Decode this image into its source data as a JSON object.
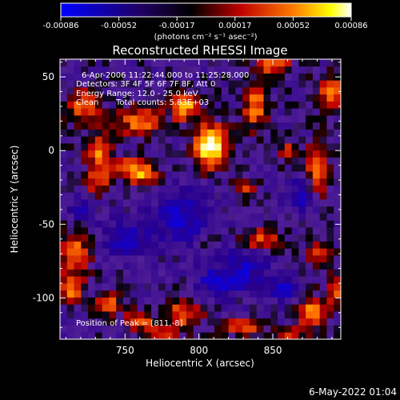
{
  "colorbar": {
    "ticks": [
      "-0.00086",
      "-0.00052",
      "-0.00017",
      "0.00017",
      "0.00052",
      "0.00086"
    ],
    "units_label": "(photons cm⁻² s⁻¹ asec⁻²)",
    "colormap": [
      "#0000ff",
      "#000000",
      "#c80000",
      "#ff8000",
      "#ffff00",
      "#ffffff"
    ]
  },
  "chart_data": {
    "type": "heatmap",
    "title": "Reconstructed RHESSI Image",
    "xlabel": "Heliocentric X (arcsec)",
    "ylabel": "Heliocentric Y (arcsec)",
    "xlim": [
      706,
      896
    ],
    "ylim": [
      -128,
      62
    ],
    "x_ticks": [
      750,
      800,
      850
    ],
    "y_ticks": [
      50,
      0,
      -50,
      -100
    ],
    "value_range": [
      -0.00086,
      0.00086
    ],
    "peak": [
      811,
      -8
    ],
    "annotations": [
      "6-Apr-2006 11:22:44.000 to 11:25:28.000",
      "Detectors: 3F 4F 5F 6F 7F 8F, Att 0",
      "Energy Range: 12.0 - 25.0 keV",
      "Clean",
      "Total counts: 5.83E+03",
      "Position of Peak = [811,-8]"
    ],
    "grid": false
  },
  "footer": {
    "timestamp": "6-May-2022 01:04"
  }
}
